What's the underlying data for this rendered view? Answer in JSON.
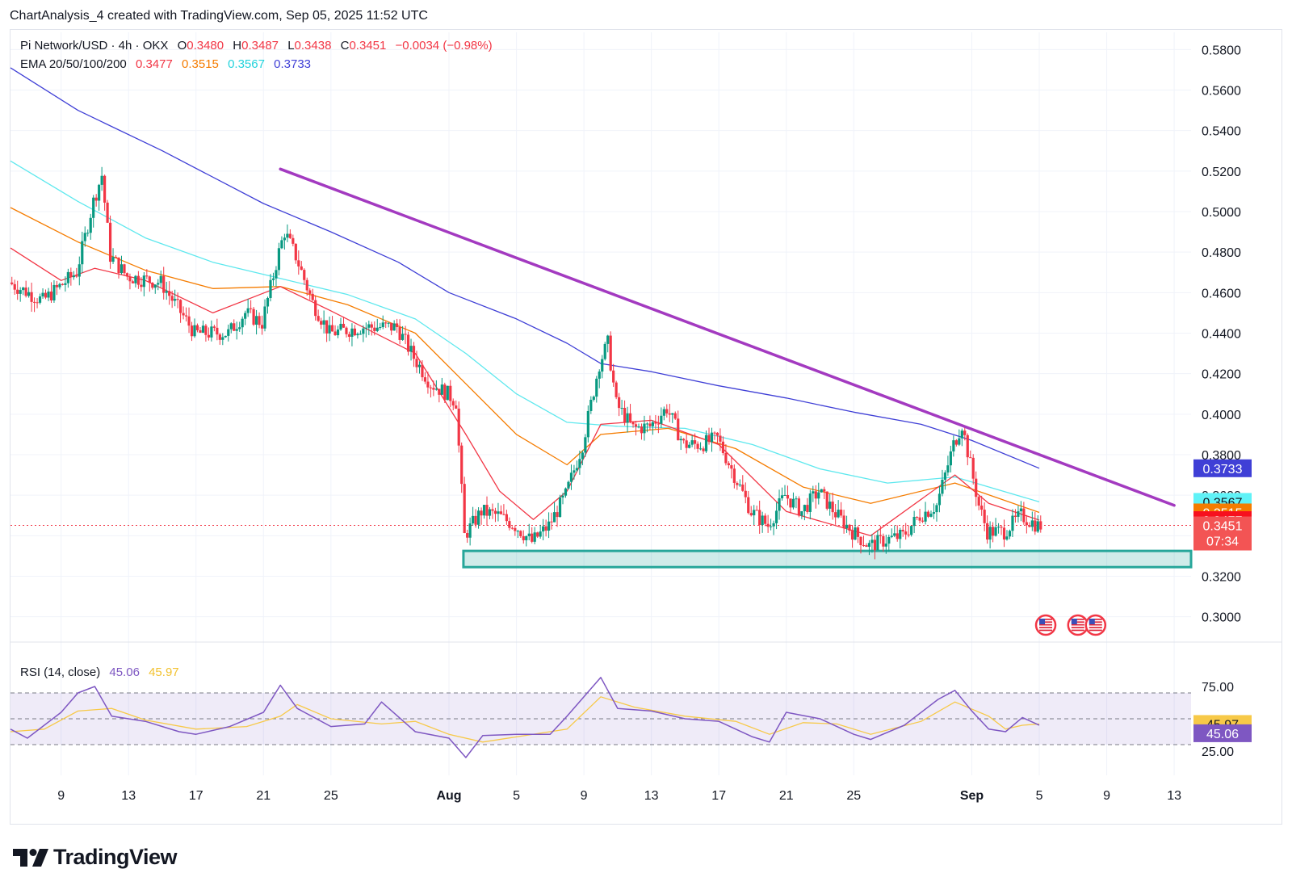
{
  "header": {
    "text": "ChartAnalysis_4 created with TradingView.com, Sep 05, 2025 11:52 UTC"
  },
  "legend": {
    "symbol": "Pi Network/USD · 4h · OKX",
    "o_label": "O",
    "o_value": "0.3480",
    "h_label": "H",
    "h_value": "0.3487",
    "l_label": "L",
    "l_value": "0.3438",
    "c_label": "C",
    "c_value": "0.3451",
    "change": "−0.0034 (−0.98%)",
    "ema_label": "EMA 20/50/100/200",
    "ema_values": [
      "0.3477",
      "0.3515",
      "0.3567",
      "0.3733"
    ]
  },
  "rsi_legend": {
    "label": "RSI (14, close)",
    "rsi_value": "45.06",
    "ma_value": "45.97"
  },
  "colors": {
    "up": "#089981",
    "down": "#f23645",
    "ema20": "#f23645",
    "ema50": "#f57c00",
    "ema100": "#5ee8ee",
    "ema200": "#3f3fd6",
    "trendline": "#a33ac0",
    "support": "#26a69a",
    "rsi": "#7e57c2",
    "rsi_ma": "#f7c948"
  },
  "brand": {
    "name": "TradingView"
  },
  "icons": [
    "us-flag-event-icon",
    "tradingview-logo-icon"
  ],
  "chart_data": {
    "type": "candlestick",
    "title": "Pi Network/USD · 4h · OKX",
    "x_range": [
      "2025-07-06",
      "2025-09-14"
    ],
    "x_tick_labels": [
      "9",
      "13",
      "17",
      "21",
      "25",
      "Aug",
      "5",
      "9",
      "13",
      "17",
      "21",
      "25",
      "Sep",
      "5",
      "9",
      "13"
    ],
    "x_tick_dates": [
      "2025-07-09",
      "2025-07-13",
      "2025-07-17",
      "2025-07-21",
      "2025-07-25",
      "2025-08-01",
      "2025-08-05",
      "2025-08-09",
      "2025-08-13",
      "2025-08-17",
      "2025-08-21",
      "2025-08-25",
      "2025-09-01",
      "2025-09-05",
      "2025-09-09",
      "2025-09-13"
    ],
    "y_range": [
      0.2895,
      0.5885
    ],
    "y_tick_labels": [
      "0.5800",
      "0.5600",
      "0.5400",
      "0.5200",
      "0.5000",
      "0.4800",
      "0.4600",
      "0.4400",
      "0.4200",
      "0.4000",
      "0.3800",
      "0.3600",
      "0.3400",
      "0.3200",
      "0.3000"
    ],
    "last_price": 0.3451,
    "countdown": "07:34",
    "price_path": [
      [
        "2025-07-06",
        0.465
      ],
      [
        "2025-07-08",
        0.456
      ],
      [
        "2025-07-10",
        0.47
      ],
      [
        "2025-07-11",
        0.505
      ],
      [
        "2025-07-11T12",
        0.518
      ],
      [
        "2025-07-12",
        0.478
      ],
      [
        "2025-07-13",
        0.468
      ],
      [
        "2025-07-15",
        0.465
      ],
      [
        "2025-07-17",
        0.44
      ],
      [
        "2025-07-19",
        0.44
      ],
      [
        "2025-07-20",
        0.45
      ],
      [
        "2025-07-21",
        0.445
      ],
      [
        "2025-07-22",
        0.48
      ],
      [
        "2025-07-22T08",
        0.49
      ],
      [
        "2025-07-23",
        0.478
      ],
      [
        "2025-07-24",
        0.455
      ],
      [
        "2025-07-25",
        0.44
      ],
      [
        "2025-07-27",
        0.443
      ],
      [
        "2025-07-29",
        0.443
      ],
      [
        "2025-07-30",
        0.428
      ],
      [
        "2025-07-31",
        0.415
      ],
      [
        "2025-08-01",
        0.41
      ],
      [
        "2025-08-01T12",
        0.406
      ],
      [
        "2025-08-02",
        0.34
      ],
      [
        "2025-08-03",
        0.352
      ],
      [
        "2025-08-04",
        0.35
      ],
      [
        "2025-08-05",
        0.345
      ],
      [
        "2025-08-06",
        0.337
      ],
      [
        "2025-08-07",
        0.345
      ],
      [
        "2025-08-08",
        0.36
      ],
      [
        "2025-08-09",
        0.385
      ],
      [
        "2025-08-10",
        0.425
      ],
      [
        "2025-08-10T12",
        0.435
      ],
      [
        "2025-08-11",
        0.405
      ],
      [
        "2025-08-12",
        0.393
      ],
      [
        "2025-08-13",
        0.394
      ],
      [
        "2025-08-14",
        0.403
      ],
      [
        "2025-08-15",
        0.385
      ],
      [
        "2025-08-16",
        0.385
      ],
      [
        "2025-08-17",
        0.388
      ],
      [
        "2025-08-18",
        0.37
      ],
      [
        "2025-08-19",
        0.352
      ],
      [
        "2025-08-20",
        0.345
      ],
      [
        "2025-08-21",
        0.36
      ],
      [
        "2025-08-22",
        0.352
      ],
      [
        "2025-08-23",
        0.362
      ],
      [
        "2025-08-24",
        0.351
      ],
      [
        "2025-08-25",
        0.342
      ],
      [
        "2025-08-26",
        0.335
      ],
      [
        "2025-08-27",
        0.338
      ],
      [
        "2025-08-28",
        0.34
      ],
      [
        "2025-08-29",
        0.35
      ],
      [
        "2025-08-30",
        0.355
      ],
      [
        "2025-08-31",
        0.385
      ],
      [
        "2025-08-31T12",
        0.395
      ],
      [
        "2025-09-01",
        0.375
      ],
      [
        "2025-09-01T12",
        0.355
      ],
      [
        "2025-09-02",
        0.342
      ],
      [
        "2025-09-03",
        0.342
      ],
      [
        "2025-09-04",
        0.35
      ],
      [
        "2025-09-05",
        0.345
      ]
    ],
    "ema200_path": [
      [
        "2025-07-06",
        0.571
      ],
      [
        "2025-07-10",
        0.55
      ],
      [
        "2025-07-15",
        0.53
      ],
      [
        "2025-07-21",
        0.504
      ],
      [
        "2025-07-25",
        0.49
      ],
      [
        "2025-07-29",
        0.475
      ],
      [
        "2025-08-01",
        0.46
      ],
      [
        "2025-08-05",
        0.447
      ],
      [
        "2025-08-08",
        0.435
      ],
      [
        "2025-08-10",
        0.425
      ],
      [
        "2025-08-13",
        0.421
      ],
      [
        "2025-08-17",
        0.414
      ],
      [
        "2025-08-21",
        0.408
      ],
      [
        "2025-08-25",
        0.401
      ],
      [
        "2025-08-29",
        0.395
      ],
      [
        "2025-09-01",
        0.387
      ],
      [
        "2025-09-05",
        0.3733
      ]
    ],
    "ema100_path": [
      [
        "2025-07-06",
        0.525
      ],
      [
        "2025-07-10",
        0.505
      ],
      [
        "2025-07-14",
        0.487
      ],
      [
        "2025-07-18",
        0.475
      ],
      [
        "2025-07-22",
        0.467
      ],
      [
        "2025-07-26",
        0.459
      ],
      [
        "2025-07-30",
        0.447
      ],
      [
        "2025-08-02",
        0.43
      ],
      [
        "2025-08-05",
        0.41
      ],
      [
        "2025-08-08",
        0.396
      ],
      [
        "2025-08-11",
        0.394
      ],
      [
        "2025-08-15",
        0.393
      ],
      [
        "2025-08-19",
        0.385
      ],
      [
        "2025-08-23",
        0.373
      ],
      [
        "2025-08-27",
        0.366
      ],
      [
        "2025-08-31",
        0.369
      ],
      [
        "2025-09-05",
        0.3567
      ]
    ],
    "ema50_path": [
      [
        "2025-07-06",
        0.502
      ],
      [
        "2025-07-10",
        0.485
      ],
      [
        "2025-07-14",
        0.471
      ],
      [
        "2025-07-18",
        0.462
      ],
      [
        "2025-07-22",
        0.463
      ],
      [
        "2025-07-26",
        0.454
      ],
      [
        "2025-07-30",
        0.44
      ],
      [
        "2025-08-02",
        0.415
      ],
      [
        "2025-08-05",
        0.39
      ],
      [
        "2025-08-08",
        0.375
      ],
      [
        "2025-08-10",
        0.39
      ],
      [
        "2025-08-14",
        0.393
      ],
      [
        "2025-08-18",
        0.383
      ],
      [
        "2025-08-22",
        0.364
      ],
      [
        "2025-08-26",
        0.356
      ],
      [
        "2025-08-31",
        0.366
      ],
      [
        "2025-09-05",
        0.3515
      ]
    ],
    "ema20_path": [
      [
        "2025-07-06",
        0.482
      ],
      [
        "2025-07-09",
        0.466
      ],
      [
        "2025-07-11",
        0.472
      ],
      [
        "2025-07-14",
        0.466
      ],
      [
        "2025-07-18",
        0.45
      ],
      [
        "2025-07-22",
        0.463
      ],
      [
        "2025-07-25",
        0.451
      ],
      [
        "2025-07-30",
        0.43
      ],
      [
        "2025-08-02",
        0.39
      ],
      [
        "2025-08-04",
        0.362
      ],
      [
        "2025-08-06",
        0.348
      ],
      [
        "2025-08-08",
        0.362
      ],
      [
        "2025-08-10",
        0.395
      ],
      [
        "2025-08-13",
        0.397
      ],
      [
        "2025-08-17",
        0.385
      ],
      [
        "2025-08-21",
        0.352
      ],
      [
        "2025-08-26",
        0.34
      ],
      [
        "2025-08-31",
        0.37
      ],
      [
        "2025-09-02",
        0.356
      ],
      [
        "2025-09-05",
        0.3477
      ]
    ],
    "trendline": [
      [
        "2025-07-22",
        0.521
      ],
      [
        "2025-09-13",
        0.355
      ]
    ],
    "support_zone": {
      "from": "2025-08-02",
      "to": "2025-09-14",
      "low": 0.3245,
      "high": 0.3325
    },
    "events_dates": [
      "2025-09-05",
      "2025-09-07"
    ],
    "rsi": {
      "name": "RSI (14, close)",
      "value": 45.06,
      "ma_value": 45.97,
      "y_tick_labels": [
        "75.00",
        "25.00"
      ],
      "bands": [
        30,
        50,
        70
      ],
      "path": [
        [
          "2025-07-06",
          42
        ],
        [
          "2025-07-07",
          35
        ],
        [
          "2025-07-09",
          55
        ],
        [
          "2025-07-10",
          70
        ],
        [
          "2025-07-11",
          75
        ],
        [
          "2025-07-12",
          52
        ],
        [
          "2025-07-14",
          48
        ],
        [
          "2025-07-16",
          40
        ],
        [
          "2025-07-17",
          38
        ],
        [
          "2025-07-19",
          44
        ],
        [
          "2025-07-21",
          55
        ],
        [
          "2025-07-22",
          76
        ],
        [
          "2025-07-23",
          58
        ],
        [
          "2025-07-25",
          44
        ],
        [
          "2025-07-27",
          46
        ],
        [
          "2025-07-28",
          63
        ],
        [
          "2025-07-30",
          40
        ],
        [
          "2025-08-01",
          35
        ],
        [
          "2025-08-02",
          20
        ],
        [
          "2025-08-03",
          37
        ],
        [
          "2025-08-05",
          38
        ],
        [
          "2025-08-07",
          38
        ],
        [
          "2025-08-08",
          52
        ],
        [
          "2025-08-09",
          67
        ],
        [
          "2025-08-10",
          82
        ],
        [
          "2025-08-11",
          58
        ],
        [
          "2025-08-13",
          56
        ],
        [
          "2025-08-15",
          50
        ],
        [
          "2025-08-17",
          48
        ],
        [
          "2025-08-19",
          36
        ],
        [
          "2025-08-20",
          32
        ],
        [
          "2025-08-21",
          55
        ],
        [
          "2025-08-23",
          50
        ],
        [
          "2025-08-25",
          38
        ],
        [
          "2025-08-26",
          34
        ],
        [
          "2025-08-28",
          45
        ],
        [
          "2025-08-30",
          65
        ],
        [
          "2025-08-31",
          72
        ],
        [
          "2025-09-01",
          56
        ],
        [
          "2025-09-02",
          42
        ],
        [
          "2025-09-03",
          40
        ],
        [
          "2025-09-04",
          51
        ],
        [
          "2025-09-05",
          45.06
        ]
      ],
      "ma_path": [
        [
          "2025-07-06",
          40
        ],
        [
          "2025-07-08",
          42
        ],
        [
          "2025-07-10",
          56
        ],
        [
          "2025-07-12",
          58
        ],
        [
          "2025-07-14",
          49
        ],
        [
          "2025-07-17",
          42
        ],
        [
          "2025-07-20",
          44
        ],
        [
          "2025-07-22",
          52
        ],
        [
          "2025-07-23",
          61
        ],
        [
          "2025-07-25",
          50
        ],
        [
          "2025-07-28",
          46
        ],
        [
          "2025-07-30",
          48
        ],
        [
          "2025-08-01",
          38
        ],
        [
          "2025-08-03",
          32
        ],
        [
          "2025-08-05",
          36
        ],
        [
          "2025-08-08",
          42
        ],
        [
          "2025-08-10",
          67
        ],
        [
          "2025-08-12",
          59
        ],
        [
          "2025-08-15",
          52
        ],
        [
          "2025-08-18",
          48
        ],
        [
          "2025-08-20",
          38
        ],
        [
          "2025-08-22",
          47
        ],
        [
          "2025-08-24",
          46
        ],
        [
          "2025-08-26",
          38
        ],
        [
          "2025-08-29",
          48
        ],
        [
          "2025-08-31",
          63
        ],
        [
          "2025-09-02",
          52
        ],
        [
          "2025-09-03",
          42
        ],
        [
          "2025-09-04",
          45
        ],
        [
          "2025-09-05",
          45.97
        ]
      ]
    }
  }
}
